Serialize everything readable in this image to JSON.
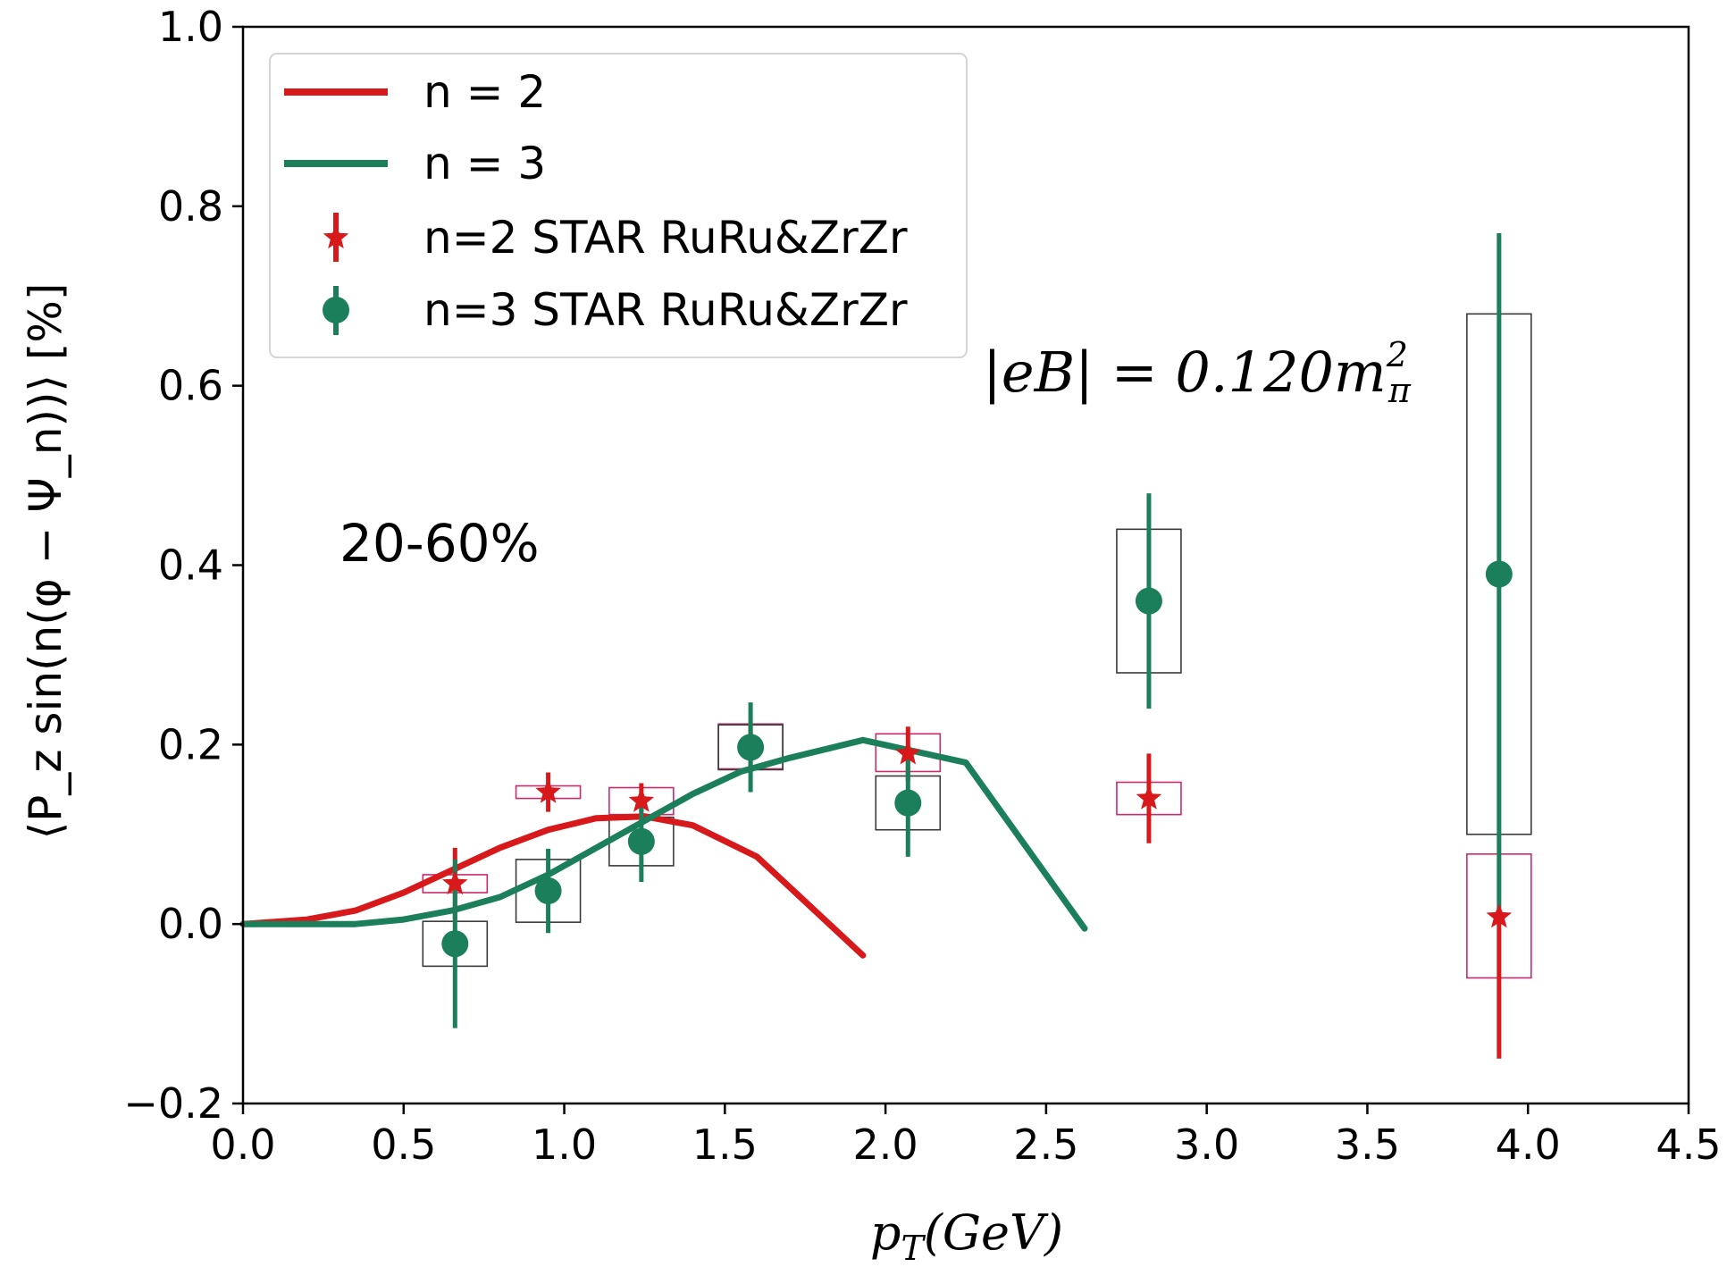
{
  "chart_data": {
    "type": "line",
    "xlabel_parts": {
      "p": "p",
      "sub": "T",
      "rest": "(GeV)"
    },
    "ylabel": "⟨P_z sin(n(φ − Ψ_n))⟩ [%]",
    "xlim": [
      0.0,
      4.5
    ],
    "ylim": [
      -0.2,
      1.0
    ],
    "x_ticks": [
      "0.0",
      "0.5",
      "1.0",
      "1.5",
      "2.0",
      "2.5",
      "3.0",
      "3.5",
      "4.0",
      "4.5"
    ],
    "y_ticks": [
      "−0.2",
      "0.0",
      "0.2",
      "0.4",
      "0.6",
      "0.8",
      "1.0"
    ],
    "centrality_label": "20-60%",
    "eB_label": "|eB| = 0.120m",
    "eB_label_sup": "2",
    "eB_label_sub": "π",
    "legend_position": "top-left",
    "legend": [
      {
        "label": "n = 2",
        "kind": "line",
        "color": "#d7191c"
      },
      {
        "label": "n = 3",
        "kind": "line",
        "color": "#1a7f5a"
      },
      {
        "label": "n=2 STAR RuRu&ZrZr",
        "kind": "star",
        "color": "#d7191c"
      },
      {
        "label": "n=3 STAR RuRu&ZrZr",
        "kind": "circle",
        "color": "#1a7f5a"
      }
    ],
    "series": [
      {
        "name": "n = 2",
        "kind": "line",
        "color": "#d7191c",
        "x": [
          0.0,
          0.2,
          0.35,
          0.5,
          0.65,
          0.8,
          0.95,
          1.1,
          1.25,
          1.4,
          1.6,
          1.93
        ],
        "y": [
          0.0,
          0.005,
          0.015,
          0.035,
          0.06,
          0.085,
          0.105,
          0.118,
          0.12,
          0.11,
          0.075,
          -0.035
        ]
      },
      {
        "name": "n = 3",
        "kind": "line",
        "color": "#1a7f5a",
        "x": [
          0.0,
          0.35,
          0.5,
          0.65,
          0.8,
          0.95,
          1.1,
          1.25,
          1.4,
          1.55,
          1.7,
          1.93,
          2.25,
          2.62
        ],
        "y": [
          0.0,
          0.0,
          0.005,
          0.015,
          0.03,
          0.055,
          0.085,
          0.115,
          0.145,
          0.17,
          0.185,
          0.205,
          0.18,
          -0.005
        ]
      },
      {
        "name": "n=2 STAR RuRu&ZrZr",
        "kind": "star",
        "color": "#d7191c",
        "x": [
          0.66,
          0.95,
          1.24,
          1.58,
          2.07,
          2.82,
          3.91
        ],
        "y": [
          0.045,
          0.147,
          0.137,
          0.198,
          0.19,
          0.14,
          0.008
        ],
        "err_low": [
          0.04,
          0.022,
          0.02,
          0.025,
          0.03,
          0.05,
          0.158
        ],
        "err_high": [
          0.04,
          0.022,
          0.02,
          0.025,
          0.03,
          0.05,
          0.007
        ],
        "sys_low": [
          0.01,
          0.007,
          0.015,
          0.025,
          0.02,
          0.018,
          0.068
        ],
        "sys_high": [
          0.01,
          0.007,
          0.015,
          0.025,
          0.022,
          0.018,
          0.07
        ]
      },
      {
        "name": "n=3 STAR RuRu&ZrZr",
        "kind": "circle",
        "color": "#1a7f5a",
        "x": [
          0.66,
          0.95,
          1.24,
          1.58,
          2.07,
          2.82,
          3.91
        ],
        "y": [
          -0.022,
          0.037,
          0.092,
          0.197,
          0.135,
          0.36,
          0.39
        ],
        "err_low": [
          0.094,
          0.047,
          0.045,
          0.05,
          0.06,
          0.12,
          0.38
        ],
        "err_high": [
          0.094,
          0.047,
          0.045,
          0.05,
          0.06,
          0.12,
          0.38
        ],
        "sys_low": [
          0.025,
          0.035,
          0.027,
          0.025,
          0.03,
          0.08,
          0.29
        ],
        "sys_high": [
          0.025,
          0.035,
          0.027,
          0.025,
          0.03,
          0.08,
          0.29
        ]
      }
    ]
  }
}
